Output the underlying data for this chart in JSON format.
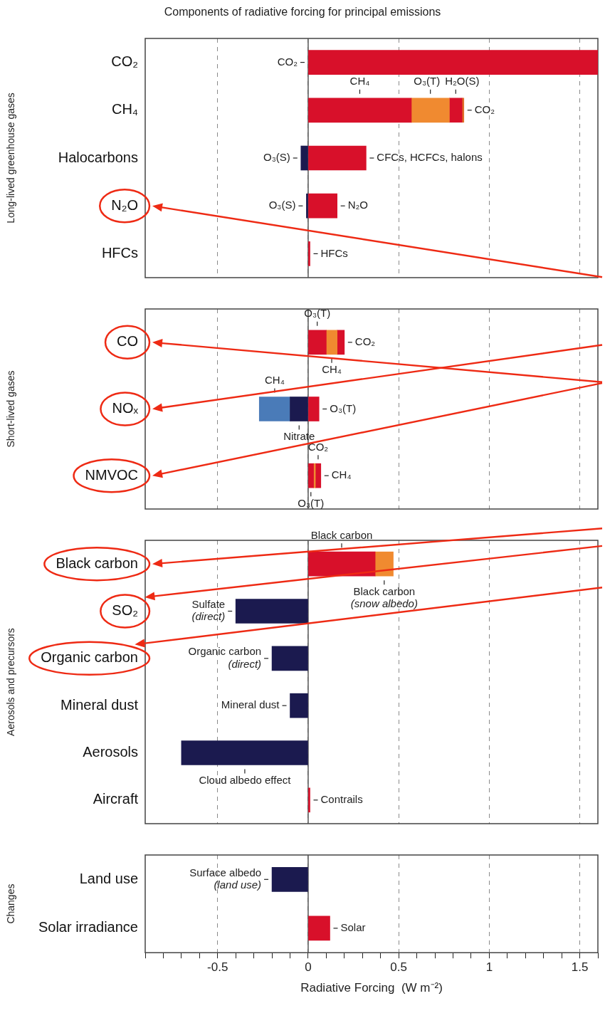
{
  "chart_data": [
    {
      "type": "bar",
      "orientation": "horizontal",
      "stacked": true,
      "title": "Components of radiative forcing for principal emissions",
      "ylabel": "Long-lived greenhouse gases",
      "categories": [
        "CO₂",
        "CH₄",
        "Halocarbons",
        "N₂O",
        "HFCs"
      ],
      "series": [
        {
          "color": "#d8102a",
          "values": [
            1.6,
            0.57,
            0.32,
            0.16,
            0.01
          ]
        },
        {
          "color": "#f08a30",
          "values": [
            null,
            0.21,
            null,
            null,
            null
          ]
        },
        {
          "color": "#d8102a",
          "values": [
            null,
            0.07,
            null,
            null,
            null
          ]
        },
        {
          "color": "#e0702a",
          "values": [
            null,
            0.01,
            null,
            null,
            null
          ]
        },
        {
          "color": "#1b1a4f",
          "values": [
            null,
            null,
            -0.04,
            -0.01,
            null
          ]
        }
      ],
      "xlim": [
        -0.9,
        1.6
      ],
      "xticks": [
        -0.5,
        0,
        0.5,
        1,
        1.5
      ],
      "grid": "x",
      "tick_labels": "y",
      "ref_lines": [
        {
          "axis": "x",
          "value": 0,
          "color": "#555555",
          "line_style": "solid"
        }
      ],
      "annotations": [
        {
          "text": "CO₂",
          "x": 0,
          "y": "CO₂"
        },
        "CH₄",
        "O₃(T)",
        "H₂O(S)",
        {
          "text": "CO₂",
          "x": 0.86,
          "y": "CH₄"
        },
        {
          "text": "O₃(S)",
          "x": -0.04,
          "y": "Halocarbons"
        },
        {
          "text": "CFCs, HCFCs, halons",
          "x": 0.32,
          "y": "Halocarbons"
        },
        {
          "text": "O₃(S)",
          "x": -0.01,
          "y": "N₂O"
        },
        {
          "text": "N₂O",
          "x": 0.16,
          "y": "N₂O"
        },
        {
          "text": "HFCs",
          "x": 0.01,
          "y": "HFCs"
        }
      ]
    },
    {
      "type": "bar",
      "orientation": "horizontal",
      "stacked": true,
      "ylabel": "Short-lived gases",
      "categories": [
        "CO",
        "NOₓ",
        "NMVOC"
      ],
      "series": [
        {
          "color": "#d8102a",
          "values": [
            0.1,
            0.06,
            0.03
          ]
        },
        {
          "color": "#f08a30",
          "values": [
            0.06,
            null,
            0.01
          ]
        },
        {
          "color": "#d8102a",
          "values": [
            0.04,
            null,
            0.03
          ]
        },
        {
          "color": "#1b1a4f",
          "values": [
            null,
            -0.1,
            null
          ]
        },
        {
          "color": "#4a7bb8",
          "values": [
            null,
            -0.17,
            null
          ]
        }
      ],
      "xlim": [
        -0.9,
        1.6
      ],
      "xticks": [
        -0.5,
        0,
        0.5,
        1,
        1.5
      ],
      "grid": "x",
      "tick_labels": "y",
      "ref_lines": [
        {
          "axis": "x",
          "value": 0,
          "color": "#555555",
          "line_style": "solid"
        }
      ],
      "annotations": [
        "O₃(T)",
        {
          "text": "CO₂",
          "x": 0.2,
          "y": "CO"
        },
        "CH₄",
        "CH₄",
        {
          "text": "O₃(T)",
          "x": 0.06,
          "y": "NOₓ"
        },
        "Nitrate",
        "CO₂",
        {
          "text": "CH₄",
          "x": 0.07,
          "y": "NMVOC"
        },
        "O₃(T)"
      ]
    },
    {
      "type": "bar",
      "orientation": "horizontal",
      "stacked": true,
      "ylabel": "Aerosols and precursors",
      "categories": [
        "Black carbon",
        "SO₂",
        "Organic carbon",
        "Mineral dust",
        "Aerosols",
        "Aircraft"
      ],
      "series": [
        {
          "color": "#d8102a",
          "values": [
            0.37,
            null,
            null,
            null,
            null,
            0.01
          ]
        },
        {
          "color": "#f08a30",
          "values": [
            0.1,
            null,
            null,
            null,
            null,
            null
          ]
        },
        {
          "color": "#1b1a4f",
          "values": [
            null,
            -0.4,
            -0.2,
            -0.1,
            -0.7,
            null
          ]
        }
      ],
      "xlim": [
        -0.9,
        1.6
      ],
      "xticks": [
        -0.5,
        0,
        0.5,
        1,
        1.5
      ],
      "grid": "x",
      "tick_labels": "y",
      "ref_lines": [
        {
          "axis": "x",
          "value": 0,
          "color": "#555555",
          "line_style": "solid"
        }
      ],
      "annotations": [
        "Black carbon",
        "Black carbon (snow albedo)",
        {
          "text": "Sulfate (direct)",
          "x": -0.4,
          "y": "SO₂"
        },
        {
          "text": "Organic carbon (direct)",
          "x": -0.2,
          "y": "Organic carbon"
        },
        {
          "text": "Mineral dust",
          "x": -0.1,
          "y": "Mineral dust"
        },
        "Cloud albedo effect",
        {
          "text": "Contrails",
          "x": 0.01,
          "y": "Aircraft"
        }
      ]
    },
    {
      "type": "bar",
      "orientation": "horizontal",
      "stacked": true,
      "ylabel": "Changes",
      "xlabel": "Radiative Forcing  (W m⁻²)",
      "categories": [
        "Land use",
        "Solar irradiance"
      ],
      "series": [
        {
          "color": "#1b1a4f",
          "values": [
            -0.2,
            null
          ]
        },
        {
          "color": "#d8102a",
          "values": [
            null,
            0.12
          ]
        }
      ],
      "xlim": [
        -0.9,
        1.6
      ],
      "xticks": [
        {
          "value": -0.9,
          "label": null
        },
        {
          "value": -0.8,
          "label": null
        },
        {
          "value": -0.7,
          "label": null
        },
        {
          "value": -0.6,
          "label": null
        },
        -0.5,
        {
          "value": -0.4,
          "label": null
        },
        {
          "value": -0.3,
          "label": null
        },
        {
          "value": -0.2,
          "label": null
        },
        {
          "value": -0.1,
          "label": null
        },
        0,
        {
          "value": 0.1,
          "label": null
        },
        {
          "value": 0.2,
          "label": null
        },
        {
          "value": 0.3,
          "label": null
        },
        {
          "value": 0.4,
          "label": null
        },
        0.5,
        {
          "value": 0.6,
          "label": null
        },
        {
          "value": 0.7,
          "label": null
        },
        {
          "value": 0.8,
          "label": null
        },
        {
          "value": 0.9,
          "label": null
        },
        1,
        {
          "value": 1.1,
          "label": null
        },
        {
          "value": 1.2,
          "label": null
        },
        {
          "value": 1.3,
          "label": null
        },
        {
          "value": 1.4,
          "label": null
        },
        1.5,
        {
          "value": 1.6,
          "label": null
        }
      ],
      "grid": "x",
      "ref_lines": [
        {
          "axis": "x",
          "value": 0,
          "color": "#555555",
          "line_style": "solid"
        }
      ],
      "annotations": [
        {
          "text": "Surface albedo (land use)",
          "x": -0.2,
          "y": "Land use"
        },
        {
          "text": "Solar",
          "x": 0.12,
          "y": "Solar irradiance"
        }
      ]
    }
  ]
}
